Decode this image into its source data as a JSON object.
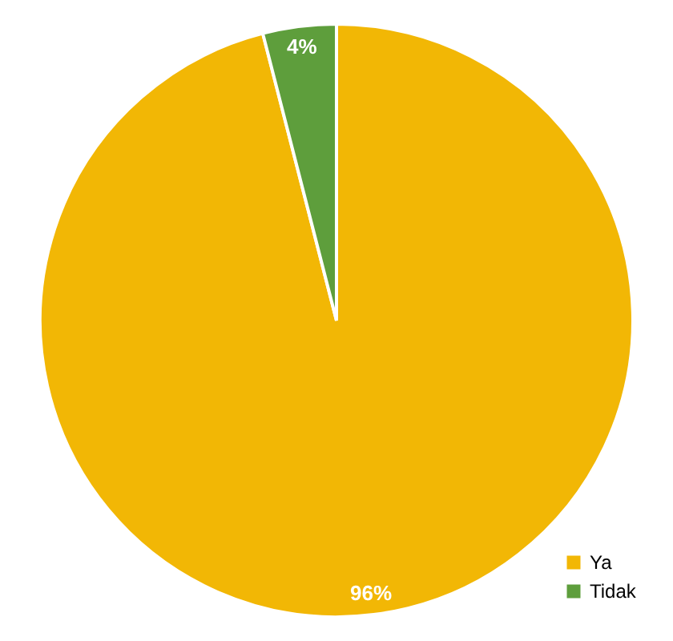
{
  "chart_data": {
    "type": "pie",
    "categories": [
      "Ya",
      "Tidak"
    ],
    "values": [
      96,
      4
    ],
    "colors": [
      "#f2b705",
      "#5e9e3c"
    ],
    "value_labels": [
      "96%",
      "4%"
    ],
    "legend": "bottom right"
  }
}
